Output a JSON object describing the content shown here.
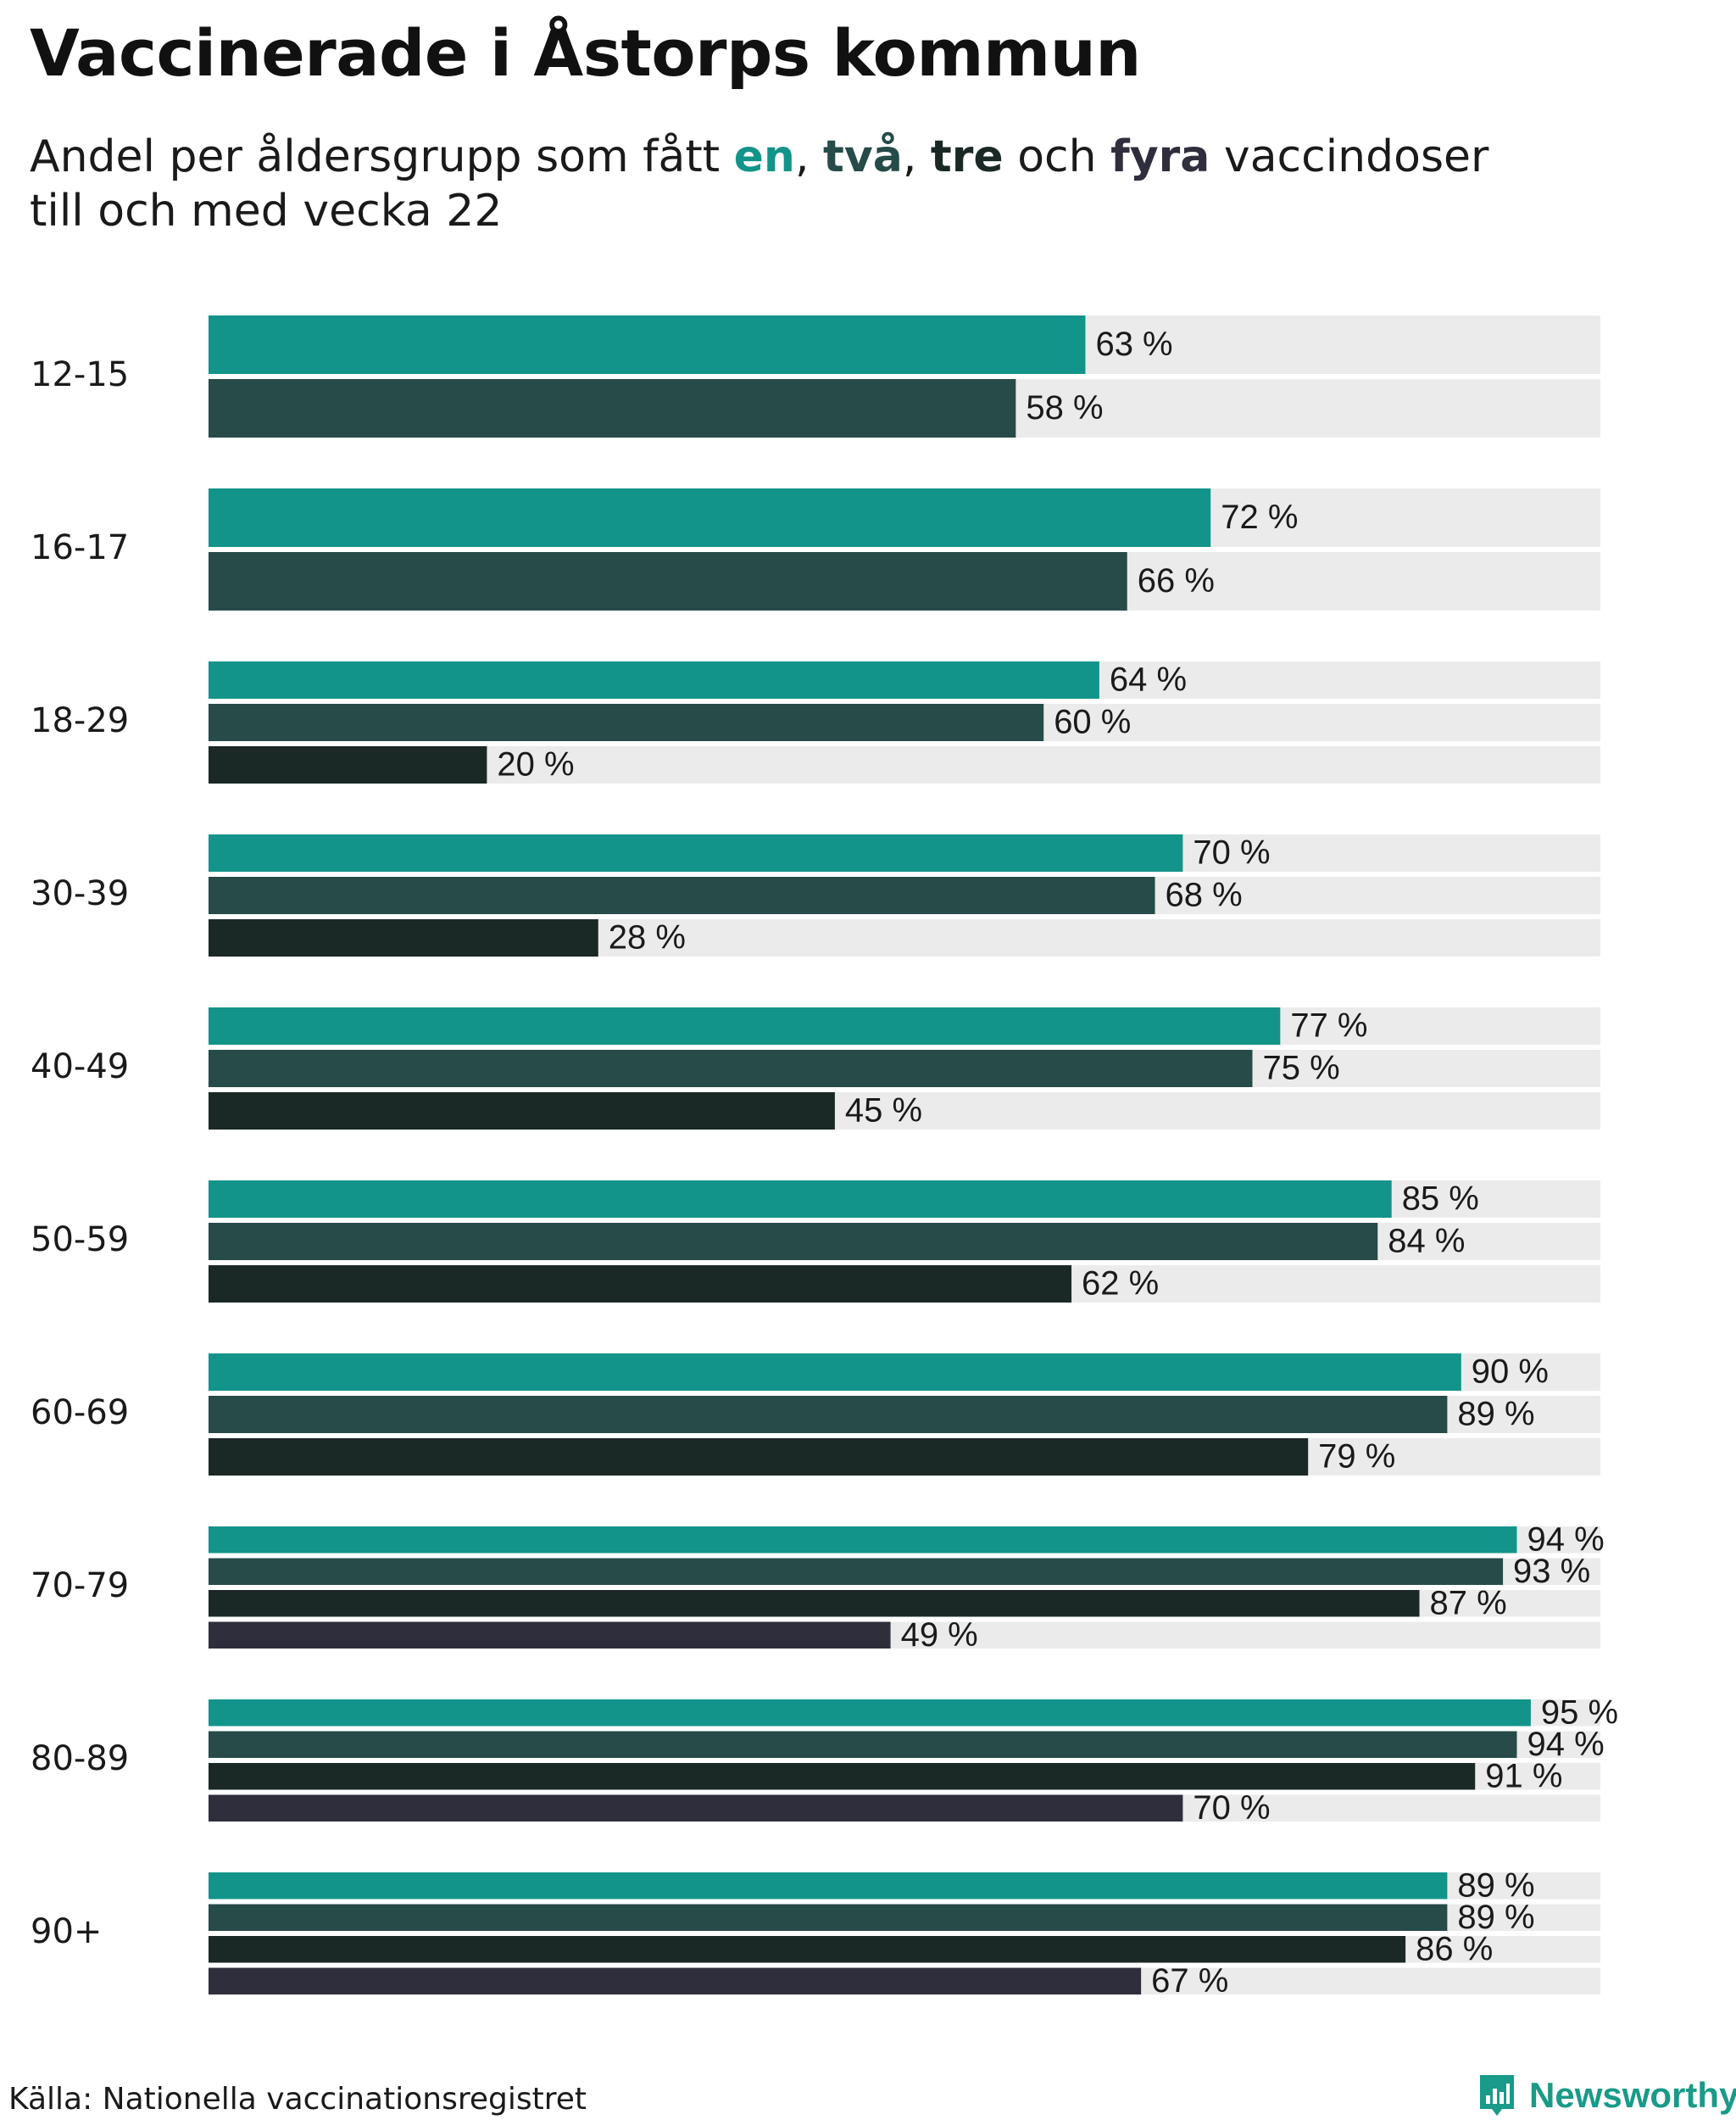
{
  "title": "Vaccinerade i Åstorps kommun",
  "subtitle": {
    "prefix": "Andel per åldersgrupp som fått ",
    "dose_words": [
      "en",
      "två",
      "tre",
      "fyra"
    ],
    "sep_comma": ", ",
    "sep_and": " och ",
    "suffix": " vaccindoser",
    "line2": "till och med vecka 22"
  },
  "colors": {
    "dose_1": "#13948a",
    "dose_2": "#264b48",
    "dose_3": "#1a2826",
    "dose_4": "#2f2e3c",
    "track": "#ebebeb",
    "brand": "#1a9a88"
  },
  "chart_data": {
    "type": "bar",
    "orientation": "horizontal",
    "categories": [
      "12-15",
      "16-17",
      "18-29",
      "30-39",
      "40-49",
      "50-59",
      "60-69",
      "70-79",
      "80-89",
      "90+"
    ],
    "series": [
      {
        "name": "en",
        "values": [
          63,
          72,
          64,
          70,
          77,
          85,
          90,
          94,
          95,
          89
        ]
      },
      {
        "name": "två",
        "values": [
          58,
          66,
          60,
          68,
          75,
          84,
          89,
          93,
          94,
          89
        ]
      },
      {
        "name": "tre",
        "values": [
          null,
          null,
          20,
          28,
          45,
          62,
          79,
          87,
          91,
          86
        ]
      },
      {
        "name": "fyra",
        "values": [
          null,
          null,
          null,
          null,
          null,
          null,
          null,
          49,
          70,
          67
        ]
      }
    ],
    "value_suffix": " %",
    "xlim": [
      0,
      100
    ],
    "grid": false,
    "legend": "in subtitle"
  },
  "footer": {
    "source": "Källa: Nationella vaccinationsregistret",
    "brand": "Newsworthy",
    "brand_icon": "newsworthy-logo-icon"
  }
}
